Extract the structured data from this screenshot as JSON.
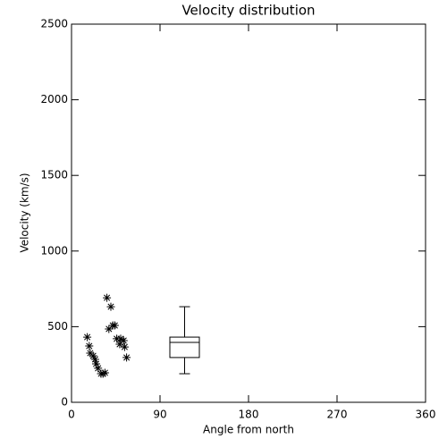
{
  "chart_data": {
    "type": "scatter",
    "title": "Velocity distribution",
    "x_label": "Angle from north",
    "y_label": "Velocity (km/s)",
    "series": [
      {
        "marker": "asterisk",
        "color": "#000000",
        "x": [
          16,
          18,
          19,
          22,
          24,
          25,
          27,
          30,
          32,
          34,
          36,
          40,
          38,
          42,
          44,
          46,
          50,
          49,
          53,
          54,
          56
        ],
        "values": [
          431,
          372,
          325,
          307,
          284,
          254,
          225,
          189,
          189,
          195,
          691,
          632,
          485,
          508,
          508,
          420,
          420,
          384,
          408,
          366,
          296
        ]
      }
    ],
    "box": {
      "x": 115,
      "min": 189,
      "q1": 296,
      "median": 396,
      "q3": 431,
      "max": 632
    },
    "xlim": [
      0,
      360
    ],
    "xticks": [
      0,
      90,
      180,
      270,
      360
    ],
    "ylim": [
      0,
      2500
    ],
    "yticks": [
      0,
      500,
      1000,
      1500,
      2000,
      2500
    ],
    "grid": false
  }
}
